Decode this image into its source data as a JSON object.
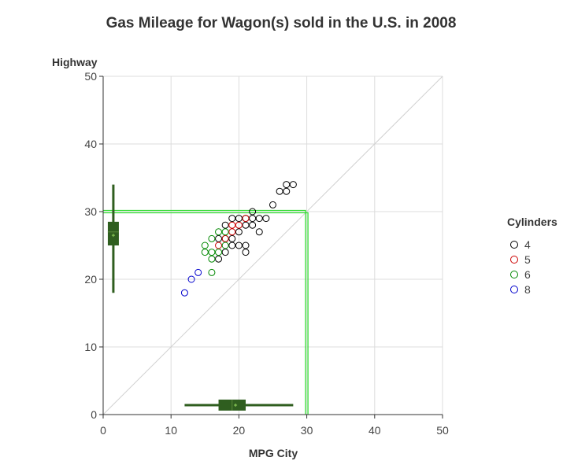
{
  "chart_data": {
    "type": "scatter",
    "title": "Gas Mileage for Wagon(s) sold in the U.S. in 2008",
    "xlabel": "MPG City",
    "ylabel": "Highway",
    "xlim": [
      0,
      50
    ],
    "ylim": [
      0,
      50
    ],
    "xticks": [
      "0",
      "10",
      "20",
      "30",
      "40",
      "50"
    ],
    "yticks": [
      "0",
      "10",
      "20",
      "30",
      "40",
      "50"
    ],
    "grid": true,
    "legend_title": "Cylinders",
    "legend_position": "right",
    "reference_line": {
      "from": [
        0,
        0
      ],
      "to": [
        50,
        50
      ],
      "color": "#d0d0d0"
    },
    "reference_guides": {
      "x": 30,
      "y": 30,
      "color": "#33dd33"
    },
    "series": [
      {
        "name": "4",
        "color": "#000000",
        "points": [
          [
            17,
            23
          ],
          [
            17,
            26
          ],
          [
            18,
            24
          ],
          [
            18,
            26
          ],
          [
            18,
            28
          ],
          [
            19,
            25
          ],
          [
            19,
            26
          ],
          [
            19,
            29
          ],
          [
            20,
            25
          ],
          [
            20,
            27
          ],
          [
            20,
            29
          ],
          [
            21,
            24
          ],
          [
            21,
            25
          ],
          [
            21,
            28
          ],
          [
            21,
            29
          ],
          [
            22,
            28
          ],
          [
            22,
            29
          ],
          [
            22,
            30
          ],
          [
            23,
            27
          ],
          [
            23,
            29
          ],
          [
            24,
            29
          ],
          [
            25,
            31
          ],
          [
            26,
            33
          ],
          [
            27,
            33
          ],
          [
            27,
            34
          ],
          [
            28,
            34
          ]
        ]
      },
      {
        "name": "5",
        "color": "#cc0000",
        "points": [
          [
            17,
            25
          ],
          [
            18,
            26
          ],
          [
            19,
            27
          ],
          [
            19,
            28
          ],
          [
            20,
            28
          ],
          [
            21,
            29
          ]
        ]
      },
      {
        "name": "6",
        "color": "#008800",
        "points": [
          [
            15,
            24
          ],
          [
            15,
            25
          ],
          [
            16,
            21
          ],
          [
            16,
            23
          ],
          [
            16,
            24
          ],
          [
            16,
            26
          ],
          [
            17,
            24
          ],
          [
            17,
            27
          ],
          [
            18,
            25
          ],
          [
            18,
            27
          ]
        ]
      },
      {
        "name": "8",
        "color": "#0000cc",
        "points": [
          [
            12,
            18
          ],
          [
            13,
            20
          ],
          [
            14,
            21
          ]
        ]
      }
    ],
    "box_x": {
      "min": 12,
      "q1": 17,
      "median": 19,
      "q3": 21,
      "max": 28,
      "mean": 19.5,
      "color": "#2f5e1f"
    },
    "box_y": {
      "min": 18,
      "q1": 25,
      "median": 27,
      "q3": 28.5,
      "max": 34,
      "mean": 26.5,
      "color": "#2f5e1f"
    }
  }
}
